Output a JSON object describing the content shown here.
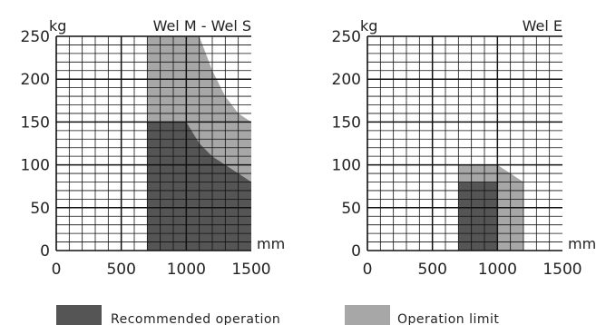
{
  "chart_data": [
    {
      "type": "area",
      "title": "Wel M - Wel S",
      "xlabel": "mm",
      "ylabel": "kg",
      "xlim": [
        0,
        1500
      ],
      "ylim": [
        0,
        250
      ],
      "x_ticks": [
        "0",
        "500",
        "1000",
        "1500"
      ],
      "y_ticks": [
        "0",
        "50",
        "100",
        "150",
        "200",
        "250"
      ],
      "grid": true,
      "series": [
        {
          "name": "Operation limit",
          "color": "#a7a7a7",
          "points": [
            [
              700,
              0
            ],
            [
              700,
              250
            ],
            [
              1100,
              250
            ],
            [
              1200,
              210
            ],
            [
              1300,
              180
            ],
            [
              1400,
              160
            ],
            [
              1500,
              150
            ],
            [
              1500,
              0
            ]
          ]
        },
        {
          "name": "Recommended operation",
          "color": "#555555",
          "points": [
            [
              700,
              0
            ],
            [
              700,
              150
            ],
            [
              1000,
              150
            ],
            [
              1100,
              125
            ],
            [
              1200,
              110
            ],
            [
              1300,
              100
            ],
            [
              1400,
              90
            ],
            [
              1500,
              80
            ],
            [
              1500,
              0
            ]
          ]
        }
      ]
    },
    {
      "type": "area",
      "title": "Wel E",
      "xlabel": "mm",
      "ylabel": "kg",
      "xlim": [
        0,
        1500
      ],
      "ylim": [
        0,
        250
      ],
      "x_ticks": [
        "0",
        "500",
        "1000",
        "1500"
      ],
      "y_ticks": [
        "0",
        "50",
        "100",
        "150",
        "200",
        "250"
      ],
      "grid": true,
      "series": [
        {
          "name": "Operation limit",
          "color": "#a7a7a7",
          "points": [
            [
              700,
              0
            ],
            [
              700,
              100
            ],
            [
              1000,
              100
            ],
            [
              1200,
              80
            ],
            [
              1200,
              0
            ]
          ]
        },
        {
          "name": "Recommended operation",
          "color": "#555555",
          "points": [
            [
              700,
              0
            ],
            [
              700,
              80
            ],
            [
              1000,
              80
            ],
            [
              1000,
              0
            ]
          ]
        }
      ]
    }
  ],
  "legend": [
    {
      "label": "Recommended operation",
      "color": "#555555"
    },
    {
      "label": "Operation limit",
      "color": "#a7a7a7"
    }
  ]
}
